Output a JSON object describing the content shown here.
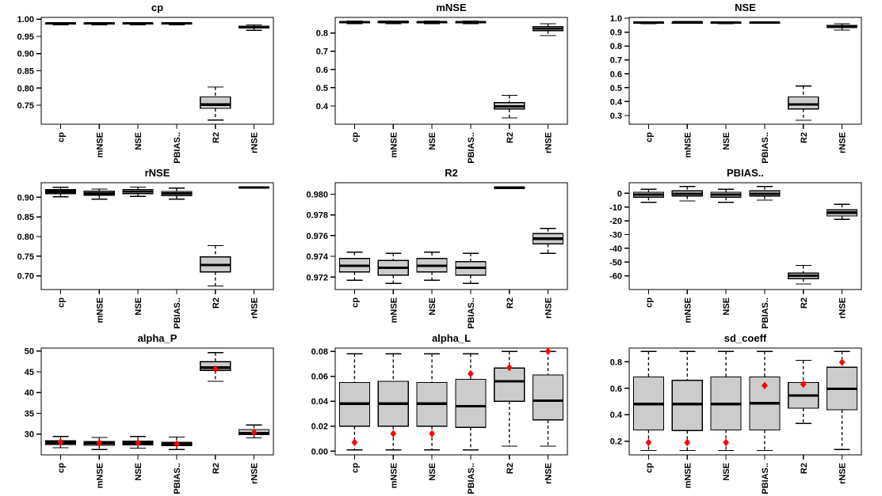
{
  "figure": {
    "kind": "boxplot-grid",
    "rows": 3,
    "cols": 3,
    "background": "#ffffff"
  },
  "chart_config": {
    "box_fill": "#cccccc",
    "box_border": "#000000",
    "median_color": "#000000",
    "whisker_color": "#000000",
    "axis_color": "#000000",
    "mean_marker": "diamond",
    "mean_color": "#ff0000",
    "x_label_rotation": -90
  },
  "chart_data": [
    {
      "type": "boxplot",
      "title": "cp",
      "categories": [
        "cp",
        "mNSE",
        "NSE",
        "PBIAS..",
        "R2",
        "rNSE"
      ],
      "ylim": [
        0.695,
        1.005
      ],
      "ytick_values": [
        0.75,
        0.8,
        0.85,
        0.9,
        0.95,
        1.0
      ],
      "ytick_labels": [
        "0.75",
        "0.80",
        "0.85",
        "0.90",
        "0.95",
        "1.00"
      ],
      "boxes": [
        {
          "low": 0.984,
          "q1": 0.9865,
          "med": 0.9875,
          "q3": 0.9885,
          "high": 0.99,
          "mean": null
        },
        {
          "low": 0.983,
          "q1": 0.9865,
          "med": 0.9875,
          "q3": 0.9885,
          "high": 0.99,
          "mean": null
        },
        {
          "low": 0.984,
          "q1": 0.9865,
          "med": 0.9875,
          "q3": 0.9885,
          "high": 0.99,
          "mean": null
        },
        {
          "low": 0.983,
          "q1": 0.9865,
          "med": 0.9875,
          "q3": 0.9885,
          "high": 0.99,
          "mean": null
        },
        {
          "low": 0.707,
          "q1": 0.741,
          "med": 0.752,
          "q3": 0.774,
          "high": 0.803,
          "mean": null
        },
        {
          "low": 0.968,
          "q1": 0.974,
          "med": 0.977,
          "q3": 0.979,
          "high": 0.983,
          "mean": null
        }
      ]
    },
    {
      "type": "boxplot",
      "title": "mNSE",
      "categories": [
        "cp",
        "mNSE",
        "NSE",
        "PBIAS..",
        "R2",
        "rNSE"
      ],
      "ylim": [
        0.3,
        0.885
      ],
      "ytick_values": [
        0.4,
        0.5,
        0.6,
        0.7,
        0.8
      ],
      "ytick_labels": [
        "0.4",
        "0.5",
        "0.6",
        "0.7",
        "0.8"
      ],
      "boxes": [
        {
          "low": 0.85,
          "q1": 0.856,
          "med": 0.859,
          "q3": 0.861,
          "high": 0.864,
          "mean": null
        },
        {
          "low": 0.852,
          "q1": 0.857,
          "med": 0.86,
          "q3": 0.862,
          "high": 0.865,
          "mean": null
        },
        {
          "low": 0.85,
          "q1": 0.856,
          "med": 0.859,
          "q3": 0.861,
          "high": 0.864,
          "mean": null
        },
        {
          "low": 0.851,
          "q1": 0.856,
          "med": 0.859,
          "q3": 0.861,
          "high": 0.864,
          "mean": null
        },
        {
          "low": 0.335,
          "q1": 0.383,
          "med": 0.398,
          "q3": 0.418,
          "high": 0.458,
          "mean": null
        },
        {
          "low": 0.785,
          "q1": 0.812,
          "med": 0.824,
          "q3": 0.835,
          "high": 0.85,
          "mean": null
        }
      ]
    },
    {
      "type": "boxplot",
      "title": "NSE",
      "categories": [
        "cp",
        "mNSE",
        "NSE",
        "PBIAS..",
        "R2",
        "rNSE"
      ],
      "ylim": [
        0.237,
        1.006
      ],
      "ytick_values": [
        0.3,
        0.4,
        0.5,
        0.6,
        0.7,
        0.8,
        0.9,
        1.0
      ],
      "ytick_labels": [
        "0.3",
        "0.4",
        "0.5",
        "0.6",
        "0.7",
        "0.8",
        "0.9",
        "1.0"
      ],
      "boxes": [
        {
          "low": 0.962,
          "q1": 0.967,
          "med": 0.969,
          "q3": 0.971,
          "high": 0.974,
          "mean": null
        },
        {
          "low": 0.963,
          "q1": 0.967,
          "med": 0.97,
          "q3": 0.972,
          "high": 0.975,
          "mean": null
        },
        {
          "low": 0.962,
          "q1": 0.967,
          "med": 0.969,
          "q3": 0.971,
          "high": 0.974,
          "mean": null
        },
        {
          "low": 0.963,
          "q1": 0.967,
          "med": 0.969,
          "q3": 0.971,
          "high": 0.974,
          "mean": null
        },
        {
          "low": 0.265,
          "q1": 0.346,
          "med": 0.379,
          "q3": 0.433,
          "high": 0.512,
          "mean": null
        },
        {
          "low": 0.915,
          "q1": 0.933,
          "med": 0.94,
          "q3": 0.948,
          "high": 0.96,
          "mean": null
        }
      ]
    },
    {
      "type": "boxplot",
      "title": "rNSE",
      "categories": [
        "cp",
        "mNSE",
        "NSE",
        "PBIAS..",
        "R2",
        "rNSE"
      ],
      "ylim": [
        0.665,
        0.937
      ],
      "ytick_values": [
        0.7,
        0.75,
        0.8,
        0.85,
        0.9
      ],
      "ytick_labels": [
        "0.70",
        "0.75",
        "0.80",
        "0.85",
        "0.90"
      ],
      "boxes": [
        {
          "low": 0.901,
          "q1": 0.909,
          "med": 0.9145,
          "q3": 0.9195,
          "high": 0.9255,
          "mean": null
        },
        {
          "low": 0.895,
          "q1": 0.9055,
          "med": 0.91,
          "q3": 0.9155,
          "high": 0.921,
          "mean": null
        },
        {
          "low": 0.902,
          "q1": 0.9095,
          "med": 0.915,
          "q3": 0.92,
          "high": 0.926,
          "mean": null
        },
        {
          "low": 0.895,
          "q1": 0.9045,
          "med": 0.91,
          "q3": 0.915,
          "high": 0.9235,
          "mean": null
        },
        {
          "low": 0.674,
          "q1": 0.71,
          "med": 0.7275,
          "q3": 0.748,
          "high": 0.777,
          "mean": null
        },
        {
          "low": 0.9235,
          "q1": 0.9245,
          "med": 0.925,
          "q3": 0.9255,
          "high": 0.9265,
          "mean": null
        }
      ]
    },
    {
      "type": "boxplot",
      "title": "R2",
      "categories": [
        "cp",
        "mNSE",
        "NSE",
        "PBIAS..",
        "R2",
        "rNSE"
      ],
      "ylim": [
        0.9708,
        0.9811
      ],
      "ytick_values": [
        0.972,
        0.974,
        0.976,
        0.978,
        0.98
      ],
      "ytick_labels": [
        "0.972",
        "0.974",
        "0.976",
        "0.978",
        "0.980"
      ],
      "boxes": [
        {
          "low": 0.9717,
          "q1": 0.9725,
          "med": 0.9731,
          "q3": 0.9738,
          "high": 0.9744,
          "mean": null
        },
        {
          "low": 0.9714,
          "q1": 0.9722,
          "med": 0.9729,
          "q3": 0.9736,
          "high": 0.9743,
          "mean": null
        },
        {
          "low": 0.9717,
          "q1": 0.9725,
          "med": 0.9731,
          "q3": 0.9738,
          "high": 0.9744,
          "mean": null
        },
        {
          "low": 0.9714,
          "q1": 0.9722,
          "med": 0.9729,
          "q3": 0.9735,
          "high": 0.9743,
          "mean": null
        },
        {
          "low": 0.98055,
          "q1": 0.9806,
          "med": 0.98063,
          "q3": 0.98066,
          "high": 0.9807,
          "mean": null
        },
        {
          "low": 0.9743,
          "q1": 0.9752,
          "med": 0.9757,
          "q3": 0.9762,
          "high": 0.9767,
          "mean": null
        }
      ]
    },
    {
      "type": "boxplot",
      "title": "PBIAS..",
      "categories": [
        "cp",
        "mNSE",
        "NSE",
        "PBIAS..",
        "R2",
        "rNSE"
      ],
      "ylim": [
        -70,
        7.7
      ],
      "ytick_values": [
        -60,
        -50,
        -40,
        -30,
        -20,
        -10,
        0
      ],
      "ytick_labels": [
        "-60",
        "-50",
        "-40",
        "-30",
        "-20",
        "-10",
        "0"
      ],
      "boxes": [
        {
          "low": -6.5,
          "q1": -2.8,
          "med": -1.0,
          "q3": 0.8,
          "high": 3.0,
          "mean": null
        },
        {
          "low": -5.5,
          "q1": -2.0,
          "med": -0.3,
          "q3": 1.8,
          "high": 5.0,
          "mean": null
        },
        {
          "low": -6.5,
          "q1": -2.8,
          "med": -1.0,
          "q3": 0.8,
          "high": 3.0,
          "mean": null
        },
        {
          "low": -5.0,
          "q1": -2.0,
          "med": -0.3,
          "q3": 1.8,
          "high": 5.0,
          "mean": null
        },
        {
          "low": -66,
          "q1": -62,
          "med": -60,
          "q3": -58,
          "high": -52.5,
          "mean": null
        },
        {
          "low": -19,
          "q1": -16.5,
          "med": -14,
          "q3": -12,
          "high": -8,
          "mean": null
        }
      ]
    },
    {
      "type": "boxplot",
      "title": "alpha_P",
      "categories": [
        "cp",
        "mNSE",
        "NSE",
        "PBIAS..",
        "R2",
        "rNSE"
      ],
      "ylim": [
        25.0,
        50.7
      ],
      "ytick_values": [
        30,
        35,
        40,
        45,
        50
      ],
      "ytick_labels": [
        "30",
        "35",
        "40",
        "45",
        "50"
      ],
      "boxes": [
        {
          "low": 26.7,
          "q1": 27.5,
          "med": 28.0,
          "q3": 28.4,
          "high": 29.4,
          "mean": 28.1
        },
        {
          "low": 26.3,
          "q1": 27.3,
          "med": 27.8,
          "q3": 28.2,
          "high": 29.2,
          "mean": 27.9
        },
        {
          "low": 26.6,
          "q1": 27.4,
          "med": 27.9,
          "q3": 28.3,
          "high": 29.4,
          "mean": 27.9
        },
        {
          "low": 26.3,
          "q1": 27.2,
          "med": 27.6,
          "q3": 28.0,
          "high": 29.3,
          "mean": 27.6
        },
        {
          "low": 42.7,
          "q1": 45.3,
          "med": 46.0,
          "q3": 47.4,
          "high": 49.6,
          "mean": 45.6
        },
        {
          "low": 29.1,
          "q1": 29.9,
          "med": 30.2,
          "q3": 31.1,
          "high": 32.2,
          "mean": 30.4
        }
      ]
    },
    {
      "type": "boxplot",
      "title": "alpha_L",
      "categories": [
        "cp",
        "mNSE",
        "NSE",
        "PBIAS..",
        "R2",
        "rNSE"
      ],
      "ylim": [
        -0.003,
        0.0826
      ],
      "ytick_values": [
        0.0,
        0.02,
        0.04,
        0.06,
        0.08
      ],
      "ytick_labels": [
        "0.00",
        "0.02",
        "0.04",
        "0.06",
        "0.08"
      ],
      "boxes": [
        {
          "low": 0.001,
          "q1": 0.02,
          "med": 0.038,
          "q3": 0.055,
          "high": 0.078,
          "mean": 0.007
        },
        {
          "low": 0.001,
          "q1": 0.02,
          "med": 0.038,
          "q3": 0.056,
          "high": 0.078,
          "mean": 0.014
        },
        {
          "low": 0.001,
          "q1": 0.02,
          "med": 0.038,
          "q3": 0.055,
          "high": 0.078,
          "mean": 0.014
        },
        {
          "low": 0.001,
          "q1": 0.019,
          "med": 0.036,
          "q3": 0.0575,
          "high": 0.078,
          "mean": 0.062
        },
        {
          "low": 0.004,
          "q1": 0.04,
          "med": 0.056,
          "q3": 0.0665,
          "high": 0.08,
          "mean": 0.067
        },
        {
          "low": 0.004,
          "q1": 0.025,
          "med": 0.0405,
          "q3": 0.061,
          "high": 0.08,
          "mean": 0.08
        }
      ]
    },
    {
      "type": "boxplot",
      "title": "sd_coeff",
      "categories": [
        "cp",
        "mNSE",
        "NSE",
        "PBIAS..",
        "R2",
        "rNSE"
      ],
      "ylim": [
        0.097,
        0.903
      ],
      "ytick_values": [
        0.2,
        0.4,
        0.6,
        0.8
      ],
      "ytick_labels": [
        "0.2",
        "0.4",
        "0.6",
        "0.8"
      ],
      "boxes": [
        {
          "low": 0.13,
          "q1": 0.285,
          "med": 0.48,
          "q3": 0.685,
          "high": 0.878,
          "mean": 0.19
        },
        {
          "low": 0.13,
          "q1": 0.28,
          "med": 0.48,
          "q3": 0.66,
          "high": 0.878,
          "mean": 0.19
        },
        {
          "low": 0.13,
          "q1": 0.285,
          "med": 0.48,
          "q3": 0.685,
          "high": 0.878,
          "mean": 0.19
        },
        {
          "low": 0.13,
          "q1": 0.285,
          "med": 0.487,
          "q3": 0.685,
          "high": 0.878,
          "mean": 0.62
        },
        {
          "low": 0.334,
          "q1": 0.449,
          "med": 0.545,
          "q3": 0.643,
          "high": 0.81,
          "mean": 0.63
        },
        {
          "low": 0.138,
          "q1": 0.437,
          "med": 0.595,
          "q3": 0.759,
          "high": 0.878,
          "mean": 0.796
        }
      ]
    }
  ]
}
